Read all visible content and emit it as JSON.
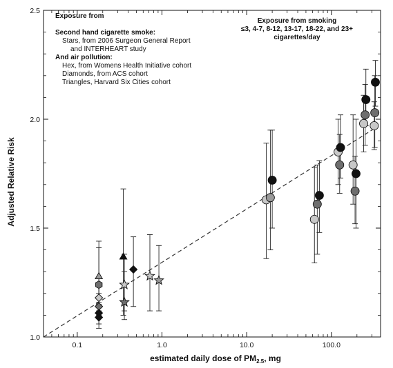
{
  "chart_data": {
    "type": "scatter",
    "xlabel": "estimated daily dose of PM",
    "xlabel_sub": "2.5",
    "xlabel_unit": ", mg",
    "ylabel": "Adjusted Relative Risk",
    "xscale": "log",
    "xlim": [
      0.04,
      380
    ],
    "ylim": [
      1.0,
      2.5
    ],
    "x_ticks": [
      {
        "value": 0.1,
        "label": "0.1"
      },
      {
        "value": 1,
        "label": "1.0"
      },
      {
        "value": 10,
        "label": "10.0"
      },
      {
        "value": 100,
        "label": "100.0"
      }
    ],
    "y_ticks": [
      {
        "value": 1.0,
        "label": "1.0"
      },
      {
        "value": 1.5,
        "label": "1.5"
      },
      {
        "value": 2.0,
        "label": "2.0"
      },
      {
        "value": 2.5,
        "label": "2.5"
      }
    ],
    "grid": false,
    "fit_line": {
      "style": "dashed",
      "points": [
        [
          0.04,
          1.0
        ],
        [
          330,
          1.96
        ]
      ]
    },
    "annotation_left": {
      "title": "Exposure from",
      "secondhand_heading": "Second hand cigarette smoke:",
      "secondhand_line1": "Stars, from 2006 Surgeon General Report",
      "secondhand_line2": "and INTERHEART study",
      "air_heading": "And air pollution:",
      "air_line1": "Hex, from Womens Health Initiative cohort",
      "air_line2": "Diamonds, from ACS cohort",
      "air_line3": "Triangles, Harvard Six Cities cohort"
    },
    "annotation_right": {
      "line1": "Exposure from smoking",
      "line2": "≤3, 4-7, 8-12, 13-17, 18-22, and 23+",
      "line3": "cigarettes/day"
    },
    "series": [
      {
        "marker": "triangle",
        "points": [
          {
            "x": 0.18,
            "y": 1.28,
            "lo": 1.15,
            "hi": 1.41,
            "color": "#9a9a9a"
          },
          {
            "x": 0.35,
            "y": 1.37,
            "lo": 1.1,
            "hi": 1.68,
            "color": "#111111"
          }
        ]
      },
      {
        "marker": "hexagon",
        "points": [
          {
            "x": 0.18,
            "y": 1.24,
            "lo": 1.1,
            "hi": 1.44,
            "color": "#6e6e6e"
          }
        ]
      },
      {
        "marker": "diamond",
        "points": [
          {
            "x": 0.18,
            "y": 1.18,
            "lo": 1.12,
            "hi": 1.25,
            "color": "#c8c8c8"
          },
          {
            "x": 0.18,
            "y": 1.14,
            "lo": 1.09,
            "hi": 1.2,
            "color": "#6e6e6e"
          },
          {
            "x": 0.18,
            "y": 1.11,
            "lo": 1.06,
            "hi": 1.16,
            "color": "#111111"
          },
          {
            "x": 0.18,
            "y": 1.09,
            "lo": 1.04,
            "hi": 1.14,
            "color": "#111111"
          },
          {
            "x": 0.46,
            "y": 1.31,
            "lo": 1.14,
            "hi": 1.46,
            "color": "#111111"
          }
        ]
      },
      {
        "marker": "star",
        "points": [
          {
            "x": 0.36,
            "y": 1.24,
            "lo": 1.12,
            "hi": 1.38,
            "color": "#c8c8c8"
          },
          {
            "x": 0.36,
            "y": 1.16,
            "lo": 1.08,
            "hi": 1.3,
            "color": "#6e6e6e"
          },
          {
            "x": 0.72,
            "y": 1.28,
            "lo": 1.12,
            "hi": 1.47,
            "color": "#c8c8c8"
          },
          {
            "x": 0.92,
            "y": 1.26,
            "lo": 1.12,
            "hi": 1.42,
            "color": "#9a9a9a"
          }
        ]
      },
      {
        "marker": "circle",
        "points": [
          {
            "x": 17,
            "y": 1.63,
            "lo": 1.36,
            "hi": 1.89,
            "color": "#c8c8c8"
          },
          {
            "x": 19,
            "y": 1.64,
            "lo": 1.4,
            "hi": 1.95,
            "color": "#9a9a9a"
          },
          {
            "x": 20,
            "y": 1.72,
            "lo": 1.5,
            "hi": 1.95,
            "color": "#111111"
          },
          {
            "x": 63,
            "y": 1.54,
            "lo": 1.34,
            "hi": 1.78,
            "color": "#c8c8c8"
          },
          {
            "x": 68,
            "y": 1.61,
            "lo": 1.38,
            "hi": 1.79,
            "color": "#6e6e6e"
          },
          {
            "x": 72,
            "y": 1.65,
            "lo": 1.48,
            "hi": 1.81,
            "color": "#111111"
          },
          {
            "x": 120,
            "y": 1.85,
            "lo": 1.7,
            "hi": 2.0,
            "color": "#c8c8c8"
          },
          {
            "x": 125,
            "y": 1.79,
            "lo": 1.66,
            "hi": 1.93,
            "color": "#6e6e6e"
          },
          {
            "x": 128,
            "y": 1.87,
            "lo": 1.73,
            "hi": 2.02,
            "color": "#111111"
          },
          {
            "x": 180,
            "y": 1.79,
            "lo": 1.61,
            "hi": 2.02,
            "color": "#c8c8c8"
          },
          {
            "x": 190,
            "y": 1.67,
            "lo": 1.52,
            "hi": 1.83,
            "color": "#6e6e6e"
          },
          {
            "x": 195,
            "y": 1.75,
            "lo": 1.5,
            "hi": 2.0,
            "color": "#111111"
          },
          {
            "x": 240,
            "y": 1.98,
            "lo": 1.85,
            "hi": 2.11,
            "color": "#c8c8c8"
          },
          {
            "x": 250,
            "y": 2.02,
            "lo": 1.88,
            "hi": 2.16,
            "color": "#6e6e6e"
          },
          {
            "x": 255,
            "y": 2.09,
            "lo": 1.97,
            "hi": 2.23,
            "color": "#111111"
          },
          {
            "x": 320,
            "y": 1.97,
            "lo": 1.86,
            "hi": 2.08,
            "color": "#c8c8c8"
          },
          {
            "x": 325,
            "y": 2.03,
            "lo": 1.87,
            "hi": 2.2,
            "color": "#6e6e6e"
          },
          {
            "x": 330,
            "y": 2.17,
            "lo": 2.06,
            "hi": 2.27,
            "color": "#111111"
          }
        ]
      }
    ]
  }
}
